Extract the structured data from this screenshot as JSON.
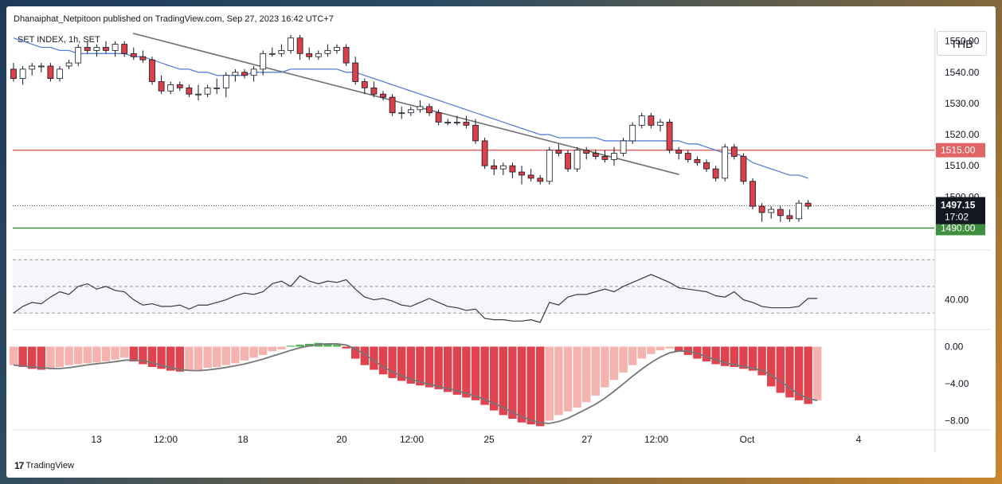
{
  "header": {
    "published_by": "Dhanaiphat_Netpitoon published on TradingView.com, Sep 27, 2023 16:42 UTC+7"
  },
  "symbol": "SET INDEX, 1h, SET",
  "currency": "THB",
  "footer": {
    "logo_glyph": "17",
    "brand": "TradingView"
  },
  "colors": {
    "up_candle": "#ffffff",
    "down_candle": "#d9404a",
    "ma_line": "#5b7fd6",
    "trendline": "#707070",
    "resistance": "#e06666",
    "support": "#3f8f3f",
    "price_label_bg": "#131722",
    "histogram_strong": "#e0424e",
    "histogram_weak": "#f4b3ae",
    "histogram_positive": "#4caf50"
  },
  "chart_data": [
    {
      "type": "line",
      "title": "",
      "name": "price",
      "ylim": [
        1484,
        1554
      ],
      "y_ticks": [
        "1550.00",
        "1540.00",
        "1530.00",
        "1520.00",
        "1510.00",
        "1500.00"
      ],
      "x_tick_labels": [
        "13",
        "12:00",
        "18",
        "20",
        "12:00",
        "25",
        "27",
        "12:00",
        "Oct",
        "4"
      ],
      "candles": [
        [
          1541,
          1543,
          1537,
          1538
        ],
        [
          1538,
          1542,
          1536,
          1541
        ],
        [
          1541,
          1543,
          1539,
          1542
        ],
        [
          1542,
          1543,
          1540,
          1542
        ],
        [
          1542,
          1543,
          1537,
          1538
        ],
        [
          1538,
          1542,
          1537,
          1541
        ],
        [
          1542,
          1544,
          1541,
          1543
        ],
        [
          1543,
          1549,
          1542,
          1548
        ],
        [
          1548,
          1550,
          1546,
          1547
        ],
        [
          1547,
          1549,
          1545,
          1548
        ],
        [
          1548,
          1550,
          1546,
          1547
        ],
        [
          1547,
          1550,
          1545,
          1549
        ],
        [
          1549,
          1550,
          1545,
          1546
        ],
        [
          1546,
          1548,
          1544,
          1545
        ],
        [
          1545,
          1547,
          1543,
          1544
        ],
        [
          1544,
          1545,
          1536,
          1537
        ],
        [
          1537,
          1539,
          1533,
          1534
        ],
        [
          1534,
          1537,
          1533,
          1536
        ],
        [
          1536,
          1537,
          1534,
          1535
        ],
        [
          1535,
          1536,
          1532,
          1533
        ],
        [
          1533,
          1536,
          1531,
          1533
        ],
        [
          1533,
          1536,
          1532,
          1535
        ],
        [
          1535,
          1538,
          1533,
          1535
        ],
        [
          1535,
          1540,
          1532,
          1539
        ],
        [
          1539,
          1541,
          1537,
          1540
        ],
        [
          1540,
          1541,
          1538,
          1539
        ],
        [
          1539,
          1542,
          1537,
          1541
        ],
        [
          1541,
          1547,
          1539,
          1546
        ],
        [
          1546,
          1548,
          1545,
          1546
        ],
        [
          1546,
          1549,
          1545,
          1547
        ],
        [
          1547,
          1552,
          1546,
          1551
        ],
        [
          1551,
          1552,
          1544,
          1546
        ],
        [
          1546,
          1548,
          1544,
          1545
        ],
        [
          1545,
          1547,
          1544,
          1546
        ],
        [
          1546,
          1549,
          1545,
          1547
        ],
        [
          1547,
          1549,
          1546,
          1548
        ],
        [
          1548,
          1549,
          1542,
          1543
        ],
        [
          1543,
          1545,
          1536,
          1537
        ],
        [
          1537,
          1538,
          1533,
          1535
        ],
        [
          1535,
          1537,
          1532,
          1533
        ],
        [
          1533,
          1534,
          1531,
          1532
        ],
        [
          1532,
          1533,
          1526,
          1527
        ],
        [
          1527,
          1529,
          1525,
          1527
        ],
        [
          1527,
          1529,
          1526,
          1528
        ],
        [
          1528,
          1531,
          1527,
          1529
        ],
        [
          1529,
          1530,
          1526,
          1527
        ],
        [
          1527,
          1528,
          1523,
          1524
        ],
        [
          1524,
          1525,
          1523,
          1524
        ],
        [
          1524,
          1526,
          1523,
          1524
        ],
        [
          1524,
          1526,
          1522,
          1523
        ],
        [
          1523,
          1525,
          1517,
          1518
        ],
        [
          1518,
          1519,
          1509,
          1510
        ],
        [
          1510,
          1512,
          1507,
          1509
        ],
        [
          1509,
          1511,
          1507,
          1510
        ],
        [
          1510,
          1511,
          1506,
          1508
        ],
        [
          1508,
          1510,
          1504,
          1507
        ],
        [
          1507,
          1509,
          1505,
          1506
        ],
        [
          1506,
          1507,
          1504,
          1505
        ],
        [
          1505,
          1516,
          1504,
          1515
        ],
        [
          1515,
          1517,
          1513,
          1514
        ],
        [
          1514,
          1515,
          1508,
          1509
        ],
        [
          1509,
          1516,
          1508,
          1515
        ],
        [
          1515,
          1516,
          1512,
          1514
        ],
        [
          1514,
          1515,
          1512,
          1513
        ],
        [
          1513,
          1515,
          1511,
          1512
        ],
        [
          1512,
          1516,
          1510,
          1514
        ],
        [
          1514,
          1519,
          1513,
          1518
        ],
        [
          1518,
          1524,
          1517,
          1523
        ],
        [
          1523,
          1527,
          1522,
          1526
        ],
        [
          1526,
          1527,
          1522,
          1523
        ],
        [
          1523,
          1525,
          1521,
          1524
        ],
        [
          1524,
          1525,
          1514,
          1515
        ],
        [
          1515,
          1516,
          1512,
          1514
        ],
        [
          1514,
          1515,
          1511,
          1512
        ],
        [
          1512,
          1513,
          1510,
          1511
        ],
        [
          1511,
          1512,
          1508,
          1509
        ],
        [
          1509,
          1510,
          1505,
          1506
        ],
        [
          1506,
          1517,
          1505,
          1516
        ],
        [
          1516,
          1517,
          1512,
          1513
        ],
        [
          1513,
          1514,
          1504,
          1505
        ],
        [
          1505,
          1506,
          1496,
          1497
        ],
        [
          1497,
          1498,
          1492,
          1495
        ],
        [
          1495,
          1497,
          1493,
          1496
        ],
        [
          1496,
          1497,
          1492,
          1494
        ],
        [
          1494,
          1496,
          1492,
          1493
        ],
        [
          1493,
          1499,
          1492,
          1498
        ],
        [
          1498,
          1499,
          1496,
          1497
        ]
      ],
      "moving_average": [
        1551,
        1550,
        1549,
        1548,
        1548,
        1547,
        1547,
        1546,
        1546,
        1546,
        1546,
        1546,
        1546,
        1545,
        1545,
        1544,
        1543,
        1542,
        1541,
        1541,
        1540,
        1540,
        1539,
        1539,
        1539,
        1539,
        1540,
        1540,
        1540,
        1540,
        1541,
        1541,
        1541,
        1541,
        1541,
        1541,
        1540,
        1540,
        1539,
        1538,
        1537,
        1536,
        1535,
        1534,
        1533,
        1532,
        1531,
        1530,
        1529,
        1528,
        1527,
        1526,
        1525,
        1524,
        1523,
        1522,
        1521,
        1520,
        1520,
        1519,
        1519,
        1519,
        1519,
        1519,
        1518,
        1518,
        1518,
        1518,
        1518,
        1518,
        1518,
        1518,
        1518,
        1517,
        1517,
        1516,
        1515,
        1514,
        1514,
        1513,
        1511,
        1510,
        1509,
        1508,
        1507,
        1507,
        1506
      ],
      "trendline": [
        [
          0,
          1552.5
        ],
        [
          66,
          1507.2
        ]
      ],
      "horizontal_levels": [
        {
          "value": 1515,
          "label": "1515.00",
          "color": "#e06666"
        },
        {
          "value": 1490,
          "label": "1490.00",
          "color": "#3f8f3f"
        }
      ],
      "last_price": {
        "value": 1497.15,
        "label": "1497.15",
        "time_label": "17:02"
      }
    },
    {
      "type": "line",
      "title": "",
      "name": "rsi",
      "ylim": [
        20,
        75
      ],
      "y_ticks": [
        "40.00"
      ],
      "bands": [
        70,
        50,
        30
      ],
      "values": [
        30,
        35,
        38,
        37,
        42,
        46,
        44,
        50,
        52,
        48,
        50,
        47,
        46,
        40,
        36,
        37,
        35,
        35,
        36,
        33,
        36,
        36,
        38,
        40,
        43,
        45,
        44,
        46,
        52,
        54,
        50,
        58,
        54,
        52,
        54,
        53,
        55,
        48,
        42,
        40,
        41,
        39,
        36,
        35,
        38,
        41,
        38,
        35,
        34,
        32,
        33,
        26,
        25,
        25,
        24,
        24,
        25,
        23,
        38,
        36,
        42,
        44,
        44,
        46,
        48,
        46,
        50,
        53,
        56,
        59,
        56,
        53,
        49,
        48,
        47,
        46,
        43,
        42,
        46,
        40,
        38,
        35,
        34,
        34,
        34,
        35,
        41,
        41
      ]
    },
    {
      "type": "bar",
      "title": "",
      "name": "histogram",
      "ylim": [
        -9,
        1.5
      ],
      "y_ticks": [
        "0.00",
        "−4.00",
        "−8.00"
      ],
      "values": [
        -2,
        -2.2,
        -2.4,
        -2.5,
        -2.4,
        -2.2,
        -2,
        -1.9,
        -1.8,
        -1.7,
        -1.6,
        -1.4,
        -1.2,
        -1.6,
        -1.9,
        -2.2,
        -2.4,
        -2.6,
        -2.7,
        -2.6,
        -2.5,
        -2.3,
        -2.2,
        -2.0,
        -1.8,
        -1.5,
        -1.2,
        -0.9,
        -0.5,
        -0.3,
        0.1,
        0.2,
        0.3,
        0.4,
        0.3,
        0.2,
        -0.2,
        -1.3,
        -2.0,
        -2.5,
        -3.0,
        -3.4,
        -3.7,
        -4.0,
        -4.2,
        -4.4,
        -4.6,
        -4.9,
        -5.2,
        -5.5,
        -5.8,
        -6.3,
        -6.9,
        -7.4,
        -7.8,
        -8.2,
        -8.4,
        -8.6,
        -8.0,
        -7.4,
        -7.0,
        -6.6,
        -6.0,
        -5.3,
        -4.4,
        -3.6,
        -2.8,
        -2.0,
        -1.3,
        -0.8,
        -0.4,
        -0.2,
        -0.5,
        -0.9,
        -1.3,
        -1.6,
        -1.9,
        -2.1,
        -2.2,
        -2.4,
        -2.6,
        -3.1,
        -4.3,
        -5.0,
        -5.5,
        -5.8,
        -6.2,
        -5.8
      ]
    }
  ]
}
